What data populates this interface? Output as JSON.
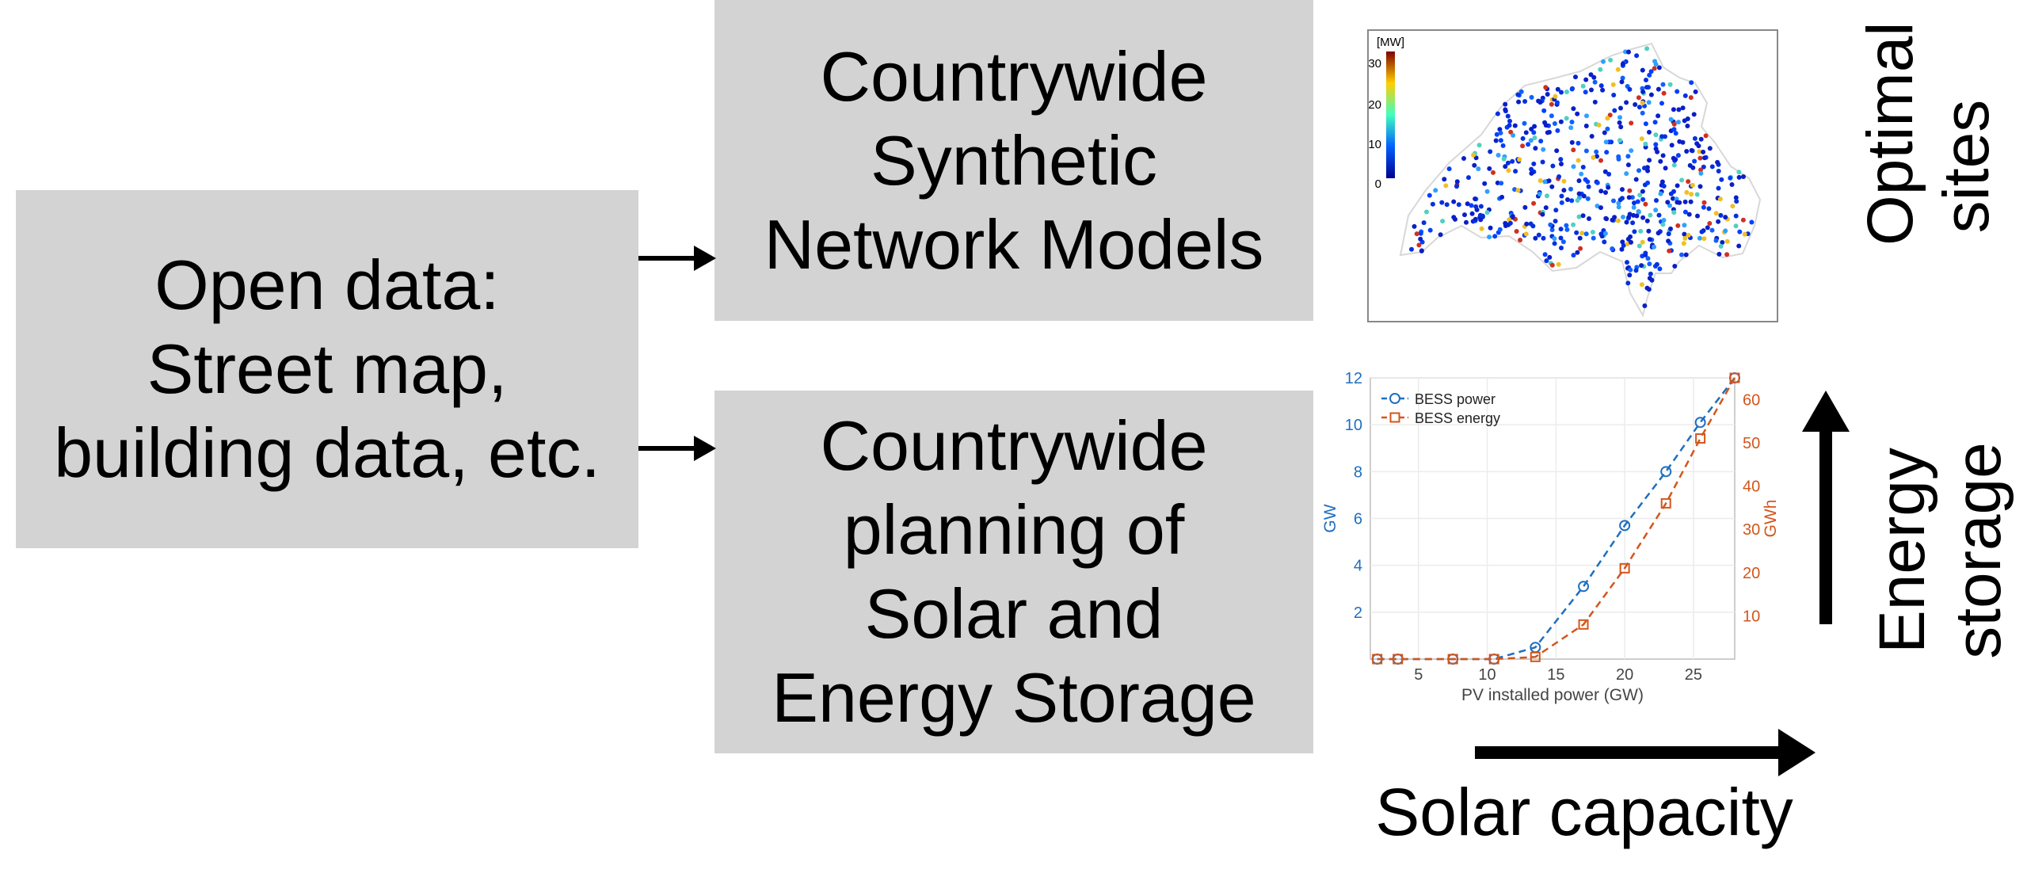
{
  "boxes": {
    "open_data": [
      "Open data:",
      "Street map,",
      "building data, etc."
    ],
    "synthetic_models": [
      "Countrywide",
      "Synthetic",
      "Network Models"
    ],
    "planning": [
      "Countrywide",
      "planning of",
      "Solar and",
      "Energy Storage"
    ]
  },
  "labels": {
    "optimal_sites": [
      "Optimal",
      "sites"
    ],
    "energy_storage": [
      "Energy",
      "storage"
    ],
    "solar_capacity": "Solar capacity"
  },
  "map": {
    "colorbar_unit": "[MW]",
    "colorbar_ticks": [
      "30",
      "20",
      "10",
      "0"
    ],
    "colors": {
      "outline": "#d8d8d8",
      "low": "#0a2ad0",
      "high": "#c0281a"
    }
  },
  "chart_data": {
    "type": "line",
    "xlabel": "PV installed power (GW)",
    "ylabel_left": "GW",
    "ylabel_right": "GWh",
    "xlim": [
      1.5,
      28
    ],
    "ylim_left": [
      0,
      12
    ],
    "ylim_right": [
      0,
      65
    ],
    "x_ticks": [
      "5",
      "10",
      "15",
      "20",
      "25"
    ],
    "y_ticks_left": [
      "2",
      "4",
      "6",
      "8",
      "10",
      "12"
    ],
    "y_ticks_right": [
      "10",
      "20",
      "30",
      "40",
      "50",
      "60"
    ],
    "grid": true,
    "legend_position": "top-left",
    "series": [
      {
        "name": "BESS power",
        "axis": "left",
        "color": "#1f6fc0",
        "marker": "circle",
        "x": [
          2,
          3.5,
          7.5,
          10.5,
          13.5,
          17,
          20,
          23,
          25.5,
          28
        ],
        "y": [
          0,
          0,
          0,
          0,
          0.5,
          3.1,
          5.7,
          8.0,
          10.1,
          12.0
        ]
      },
      {
        "name": "BESS energy",
        "axis": "right",
        "color": "#d2561c",
        "marker": "square",
        "x": [
          2,
          3.5,
          7.5,
          10.5,
          13.5,
          17,
          20,
          23,
          25.5,
          28
        ],
        "y": [
          0,
          0,
          0,
          0,
          0.5,
          8,
          21,
          36,
          51,
          65
        ]
      }
    ]
  }
}
